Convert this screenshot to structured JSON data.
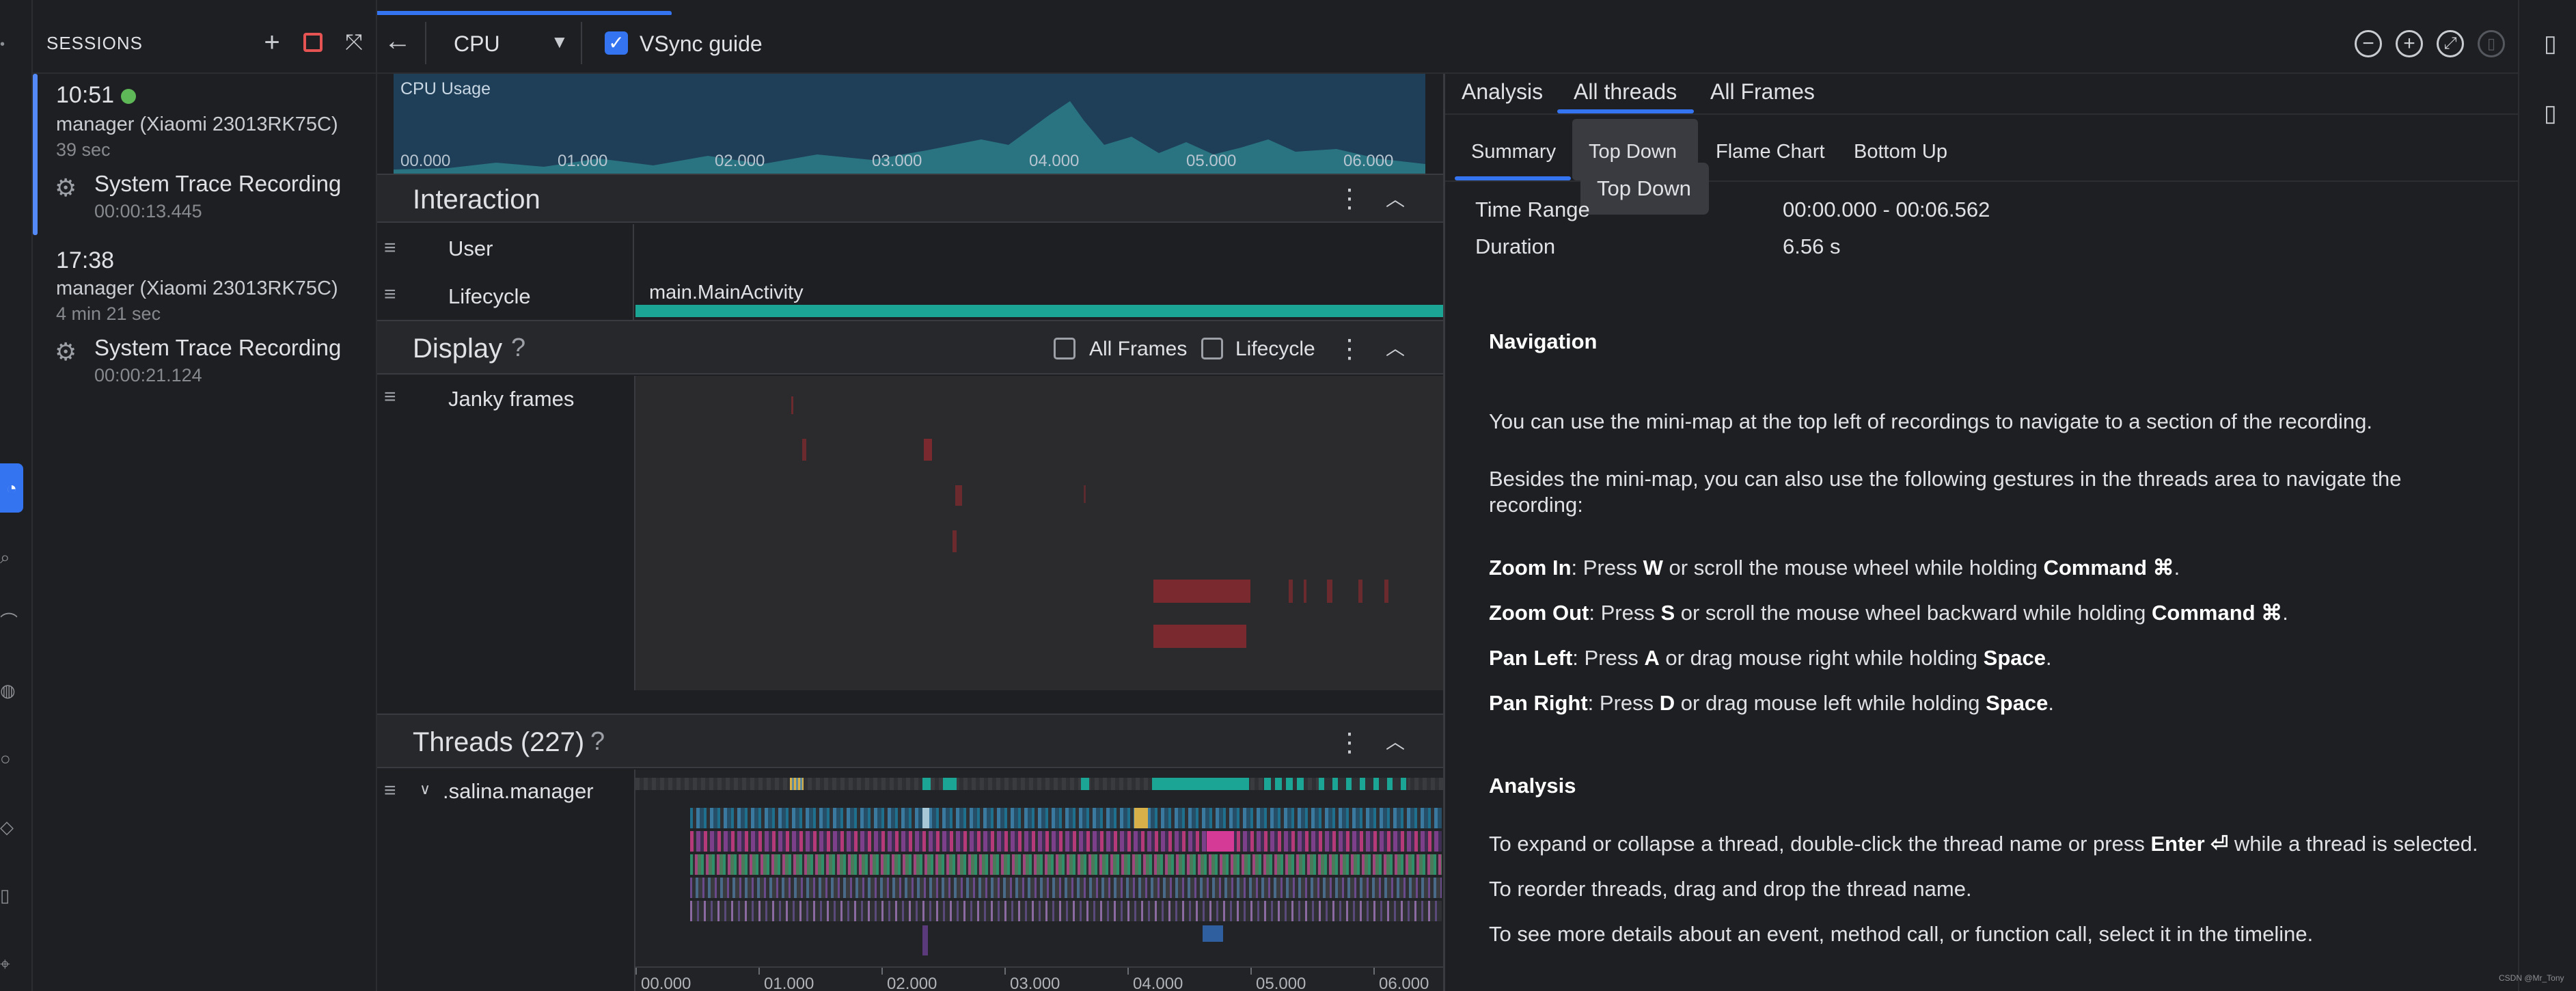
{
  "sessions": {
    "title": "SESSIONS",
    "items": [
      {
        "time": "10:51",
        "device": "manager (Xiaomi 23013RK75C)",
        "duration": "39 sec",
        "recording": "System Trace Recording",
        "recording_length": "00:00:13.445"
      },
      {
        "time": "17:38",
        "device": "manager (Xiaomi 23013RK75C)",
        "duration": "4 min 21 sec",
        "recording": "System Trace Recording",
        "recording_length": "00:00:21.124"
      }
    ]
  },
  "toolbar": {
    "cpu_select": "CPU",
    "vsync_label": "VSync guide"
  },
  "cpu_usage": {
    "label": "CPU Usage",
    "ticks": [
      "00.000",
      "01.000",
      "02.000",
      "03.000",
      "04.000",
      "05.000",
      "06.000"
    ]
  },
  "interaction": {
    "title": "Interaction",
    "lanes": [
      "User",
      "Lifecycle"
    ],
    "lifecycle_event": "main.MainActivity"
  },
  "display": {
    "title": "Display",
    "help": "?",
    "all_frames_label": "All Frames",
    "lifecycle_label": "Lifecycle",
    "janky_label": "Janky frames"
  },
  "threads": {
    "title": "Threads (227)",
    "help": "?",
    "process": ".salina.manager",
    "ticks": [
      "00.000",
      "01.000",
      "02.000",
      "03.000",
      "04.000",
      "05.000",
      "06.000"
    ]
  },
  "analysis": {
    "tabs": [
      "Analysis",
      "All threads",
      "All Frames"
    ],
    "subtabs": [
      "Summary",
      "Top Down",
      "Flame Chart",
      "Bottom Up"
    ],
    "tooltip": "Top Down",
    "time_range_label": "Time Range",
    "time_range_value": "00:00.000 - 00:06.562",
    "duration_label": "Duration",
    "duration_value": "6.56 s",
    "nav_heading": "Navigation",
    "nav_p1": "You can use the mini-map at the top left of recordings to navigate to a section of the recording.",
    "nav_p2a": "Besides the mini-map, you can also use the following gestures in the threads area to navigate the",
    "nav_p2b": "recording:",
    "zoom_in_label": "Zoom In",
    "zoom_in_a": ": Press ",
    "zoom_in_key": "W",
    "zoom_in_b": " or scroll the mouse wheel while holding ",
    "zoom_in_mod": "Command ⌘",
    "zoom_out_label": "Zoom Out",
    "zoom_out_a": ": Press ",
    "zoom_out_key": "S",
    "zoom_out_b": " or scroll the mouse wheel backward while holding ",
    "zoom_out_mod": "Command ⌘",
    "pan_left_label": "Pan Left",
    "pan_left_a": ": Press ",
    "pan_left_key": "A",
    "pan_left_b": " or drag mouse right while holding ",
    "pan_left_mod": "Space",
    "pan_right_label": "Pan Right",
    "pan_right_a": ": Press ",
    "pan_right_key": "D",
    "pan_right_b": " or drag mouse left while holding ",
    "pan_right_mod": "Space",
    "analysis_heading": "Analysis",
    "an_p1a": "To expand or collapse a thread, double-click the thread name or press ",
    "an_p1key": "Enter ⏎",
    "an_p1b": " while a thread is selected.",
    "an_p2": "To reorder threads, drag and drop the thread name.",
    "an_p3": "To see more details about an event, method call, or function call, select it in the timeline."
  },
  "watermark": "CSDN @Mr_Tony",
  "colors": {
    "accent": "#3574f0",
    "teal": "#1aa594",
    "jank": "#7a2a2e",
    "stop": "#e55353",
    "online": "#5fb858"
  }
}
